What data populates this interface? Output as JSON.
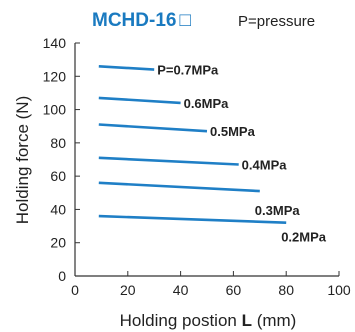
{
  "chart_data": {
    "type": "line",
    "title": "MCHD-16",
    "title_symbol": "□",
    "note": "P=pressure",
    "xlabel_prefix": "Holding postion ",
    "xlabel_bold": "L",
    "xlabel_suffix": " (mm)",
    "ylabel": "Holding force (N)",
    "xlim": [
      0,
      100
    ],
    "ylim": [
      0,
      140
    ],
    "x_ticks": [
      "0",
      "20",
      "40",
      "60",
      "80",
      "100"
    ],
    "y_ticks": [
      "0",
      "20",
      "40",
      "60",
      "80",
      "100",
      "120",
      "140"
    ],
    "grid": false,
    "series": [
      {
        "name": "P=0.7MPa",
        "x": [
          9,
          30
        ],
        "y": [
          126,
          124
        ]
      },
      {
        "name": "0.6MPa",
        "x": [
          9,
          40
        ],
        "y": [
          107,
          104
        ]
      },
      {
        "name": "0.5MPa",
        "x": [
          9,
          50
        ],
        "y": [
          91,
          87
        ]
      },
      {
        "name": "0.4MPa",
        "x": [
          9,
          62
        ],
        "y": [
          71,
          67
        ]
      },
      {
        "name": "0.3MPa",
        "x": [
          9,
          70
        ],
        "y": [
          56,
          51
        ]
      },
      {
        "name": "0.2MPa",
        "x": [
          9,
          80
        ],
        "y": [
          36,
          32
        ]
      }
    ],
    "colors": {
      "title": "#1a7ac0",
      "line": "#1f7fc6",
      "text": "#222222",
      "axis": "#333333"
    }
  }
}
